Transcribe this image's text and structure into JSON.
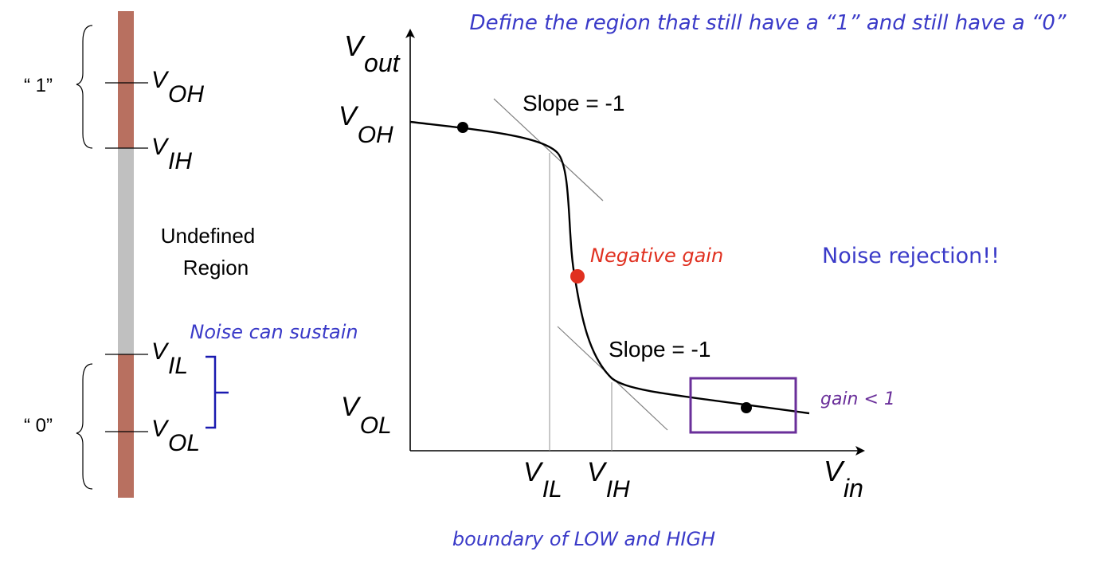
{
  "title": "Define the region that still have a “1” and still have a “0”",
  "footer": "boundary of LOW and HIGH",
  "colors": {
    "logic_band": "#b87060",
    "undefined_band": "#c0c0c0",
    "annotation_blue": "#3a3ac8",
    "negative_gain_red": "#e03020",
    "gain_purple": "#6a2f9a",
    "curve": "#000000",
    "guide": "#909090"
  },
  "bar": {
    "one_label": "“ 1”",
    "zero_label": "“ 0”",
    "undefined_line1": "Undefined",
    "undefined_line2": "Region",
    "noise_note": "Noise can sustain",
    "voh": {
      "main": "V",
      "sub": "OH"
    },
    "vih": {
      "main": "V",
      "sub": "IH"
    },
    "vil": {
      "main": "V",
      "sub": "IL"
    },
    "vol": {
      "main": "V",
      "sub": "OL"
    }
  },
  "graph": {
    "y_axis": {
      "main": "V",
      "sub": "out"
    },
    "x_axis": {
      "main": "V",
      "sub": "in"
    },
    "y_voh": {
      "main": "V",
      "sub": "OH"
    },
    "y_vol": {
      "main": "V",
      "sub": "OL"
    },
    "x_vil": {
      "main": "V",
      "sub": "IL"
    },
    "x_vih": {
      "main": "V",
      "sub": "IH"
    },
    "slope_top": "Slope = -1",
    "slope_bottom": "Slope = -1",
    "negative_gain": "Negative gain",
    "gain_less": "gain < 1",
    "noise_rejection": "Noise rejection!!"
  }
}
